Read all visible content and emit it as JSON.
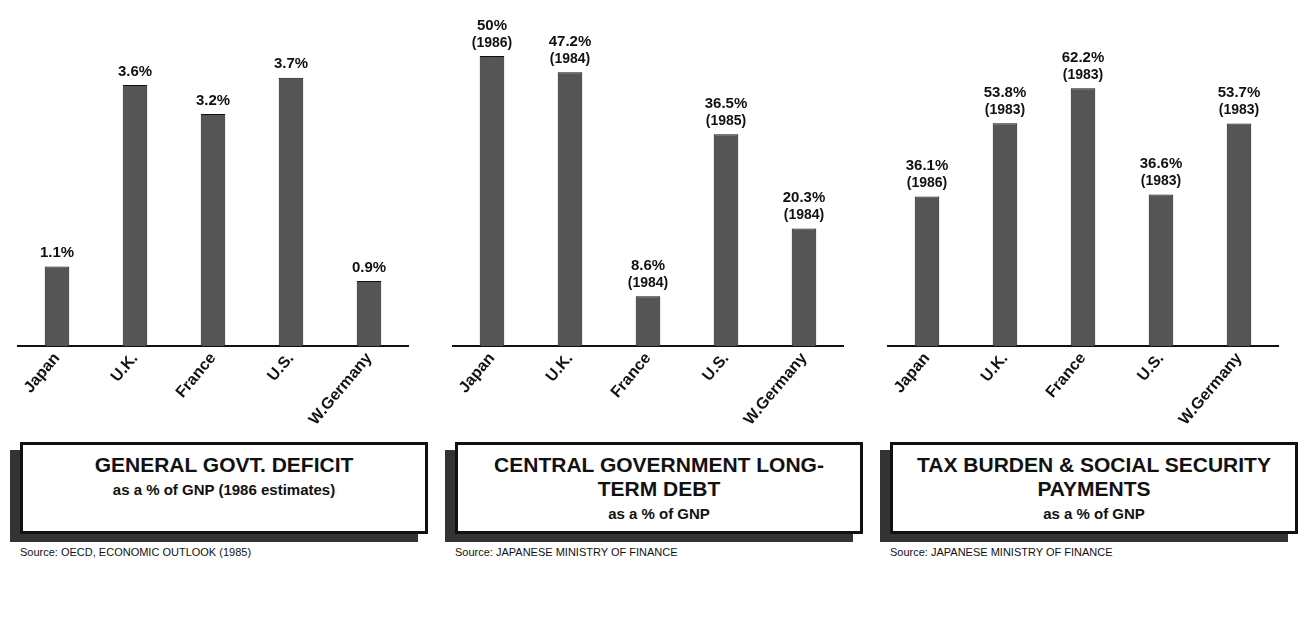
{
  "chart_data": [
    {
      "type": "bar",
      "title": "GENERAL GOVT. DEFICIT",
      "subtitle": "as a % of GNP (1986 estimates)",
      "source": "Source: OECD, ECONOMIC OUTLOOK (1985)",
      "categories": [
        "Japan",
        "U.K.",
        "France",
        "U.S.",
        "W.Germany"
      ],
      "values": [
        1.1,
        3.6,
        3.2,
        3.7,
        0.9
      ],
      "value_labels": [
        "1.1%",
        "3.6%",
        "3.2%",
        "3.7%",
        "0.9%"
      ],
      "color": "#555555",
      "data_labels": true,
      "tick_labels": "x",
      "grid": false
    },
    {
      "type": "bar",
      "title": "CENTRAL GOVERNMENT LONG-TERM DEBT",
      "subtitle": "as a % of GNP",
      "source": "Source: JAPANESE MINISTRY OF FINANCE",
      "categories": [
        "Japan",
        "U.K.",
        "France",
        "U.S.",
        "W.Germany"
      ],
      "values": [
        50,
        47.2,
        8.6,
        36.5,
        20.3
      ],
      "value_labels": [
        "50%",
        "47.2%",
        "8.6%",
        "36.5%",
        "20.3%"
      ],
      "years": [
        "(1986)",
        "(1984)",
        "(1984)",
        "(1985)",
        "(1984)"
      ],
      "color": "#555555",
      "data_labels": true,
      "tick_labels": "x",
      "grid": false
    },
    {
      "type": "bar",
      "title": "TAX BURDEN & SOCIAL SECURITY PAYMENTS",
      "subtitle": "as a % of GNP",
      "source": "Source: JAPANESE MINISTRY OF FINANCE",
      "categories": [
        "Japan",
        "U.K.",
        "France",
        "U.S.",
        "W.Germany"
      ],
      "values": [
        36.1,
        53.8,
        62.2,
        36.6,
        53.7
      ],
      "value_labels": [
        "36.1%",
        "53.8%",
        "62.2%",
        "36.6%",
        "53.7%"
      ],
      "years": [
        "(1986)",
        "(1983)",
        "(1983)",
        "(1983)",
        "(1983)"
      ],
      "color": "#555555",
      "data_labels": true,
      "tick_labels": "x",
      "grid": false
    }
  ]
}
